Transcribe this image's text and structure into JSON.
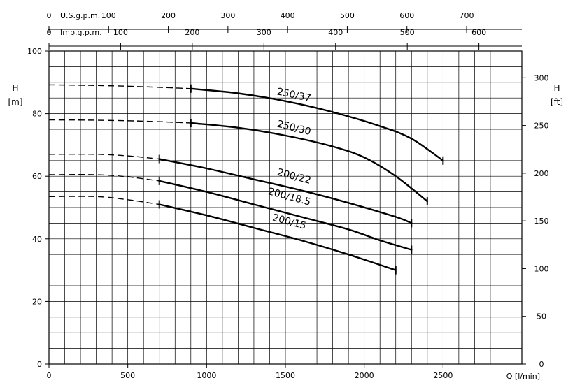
{
  "chart_data": {
    "type": "line",
    "x_unit_label": "Q [l/min]",
    "y_left_label": "H",
    "y_left_unit": "[m]",
    "y_right_label": "H",
    "y_right_unit": "[ft]",
    "xlim": [
      0,
      3000
    ],
    "ylim": [
      0,
      100
    ],
    "y_right_lim": [
      0,
      328.08
    ],
    "grid": true,
    "x_ticks": [
      0,
      500,
      1000,
      1500,
      2000,
      2500
    ],
    "y_ticks": [
      0,
      20,
      40,
      60,
      80,
      100
    ],
    "y_right_ticks": [
      0,
      50,
      100,
      150,
      200,
      250,
      300
    ],
    "top_axes": [
      {
        "label": "U.S.g.p.m.",
        "unit_lpm": 3.785,
        "ticks": [
          0,
          100,
          200,
          300,
          400,
          500,
          600,
          700
        ]
      },
      {
        "label": "Imp.g.p.m.",
        "unit_lpm": 4.546,
        "ticks": [
          0,
          100,
          200,
          300,
          400,
          500,
          600
        ]
      }
    ],
    "series": [
      {
        "name": "250/37",
        "dashed": [
          [
            0,
            89.2
          ],
          [
            300,
            89.0
          ],
          [
            600,
            88.6
          ],
          [
            900,
            88.0
          ]
        ],
        "solid": [
          [
            900,
            88.0
          ],
          [
            1200,
            86.5
          ],
          [
            1500,
            84.0
          ],
          [
            1800,
            80.5
          ],
          [
            2100,
            76.0
          ],
          [
            2300,
            72.0
          ],
          [
            2500,
            65.0
          ]
        ],
        "label_at": [
          1550,
          85.0
        ],
        "label_angle": 12
      },
      {
        "name": "250/30",
        "dashed": [
          [
            0,
            78.0
          ],
          [
            300,
            77.9
          ],
          [
            600,
            77.6
          ],
          [
            900,
            77.0
          ]
        ],
        "solid": [
          [
            900,
            77.0
          ],
          [
            1200,
            75.5
          ],
          [
            1500,
            73.0
          ],
          [
            1800,
            69.5
          ],
          [
            2000,
            66.0
          ],
          [
            2200,
            60.0
          ],
          [
            2400,
            52.0
          ]
        ],
        "label_at": [
          1550,
          74.5
        ],
        "label_angle": 14
      },
      {
        "name": "200/22",
        "dashed": [
          [
            0,
            67.0
          ],
          [
            300,
            67.0
          ],
          [
            500,
            66.5
          ],
          [
            700,
            65.5
          ]
        ],
        "solid": [
          [
            700,
            65.5
          ],
          [
            1000,
            62.5
          ],
          [
            1300,
            59.0
          ],
          [
            1600,
            55.5
          ],
          [
            1900,
            51.5
          ],
          [
            2200,
            47.0
          ],
          [
            2300,
            45.0
          ]
        ],
        "label_at": [
          1550,
          59.0
        ],
        "label_angle": 15
      },
      {
        "name": "200/18.5",
        "dashed": [
          [
            0,
            60.5
          ],
          [
            300,
            60.5
          ],
          [
            500,
            59.8
          ],
          [
            700,
            58.5
          ]
        ],
        "solid": [
          [
            700,
            58.5
          ],
          [
            1000,
            55.0
          ],
          [
            1300,
            51.0
          ],
          [
            1600,
            47.0
          ],
          [
            1900,
            43.0
          ],
          [
            2100,
            39.5
          ],
          [
            2300,
            36.5
          ]
        ],
        "label_at": [
          1520,
          52.5
        ],
        "label_angle": 15
      },
      {
        "name": "200/15",
        "dashed": [
          [
            0,
            53.5
          ],
          [
            300,
            53.5
          ],
          [
            500,
            52.5
          ],
          [
            700,
            51.0
          ]
        ],
        "solid": [
          [
            700,
            51.0
          ],
          [
            1000,
            47.5
          ],
          [
            1300,
            43.5
          ],
          [
            1600,
            39.5
          ],
          [
            1900,
            35.0
          ],
          [
            2200,
            30.0
          ]
        ],
        "label_at": [
          1520,
          44.5
        ],
        "label_angle": 15
      }
    ]
  }
}
